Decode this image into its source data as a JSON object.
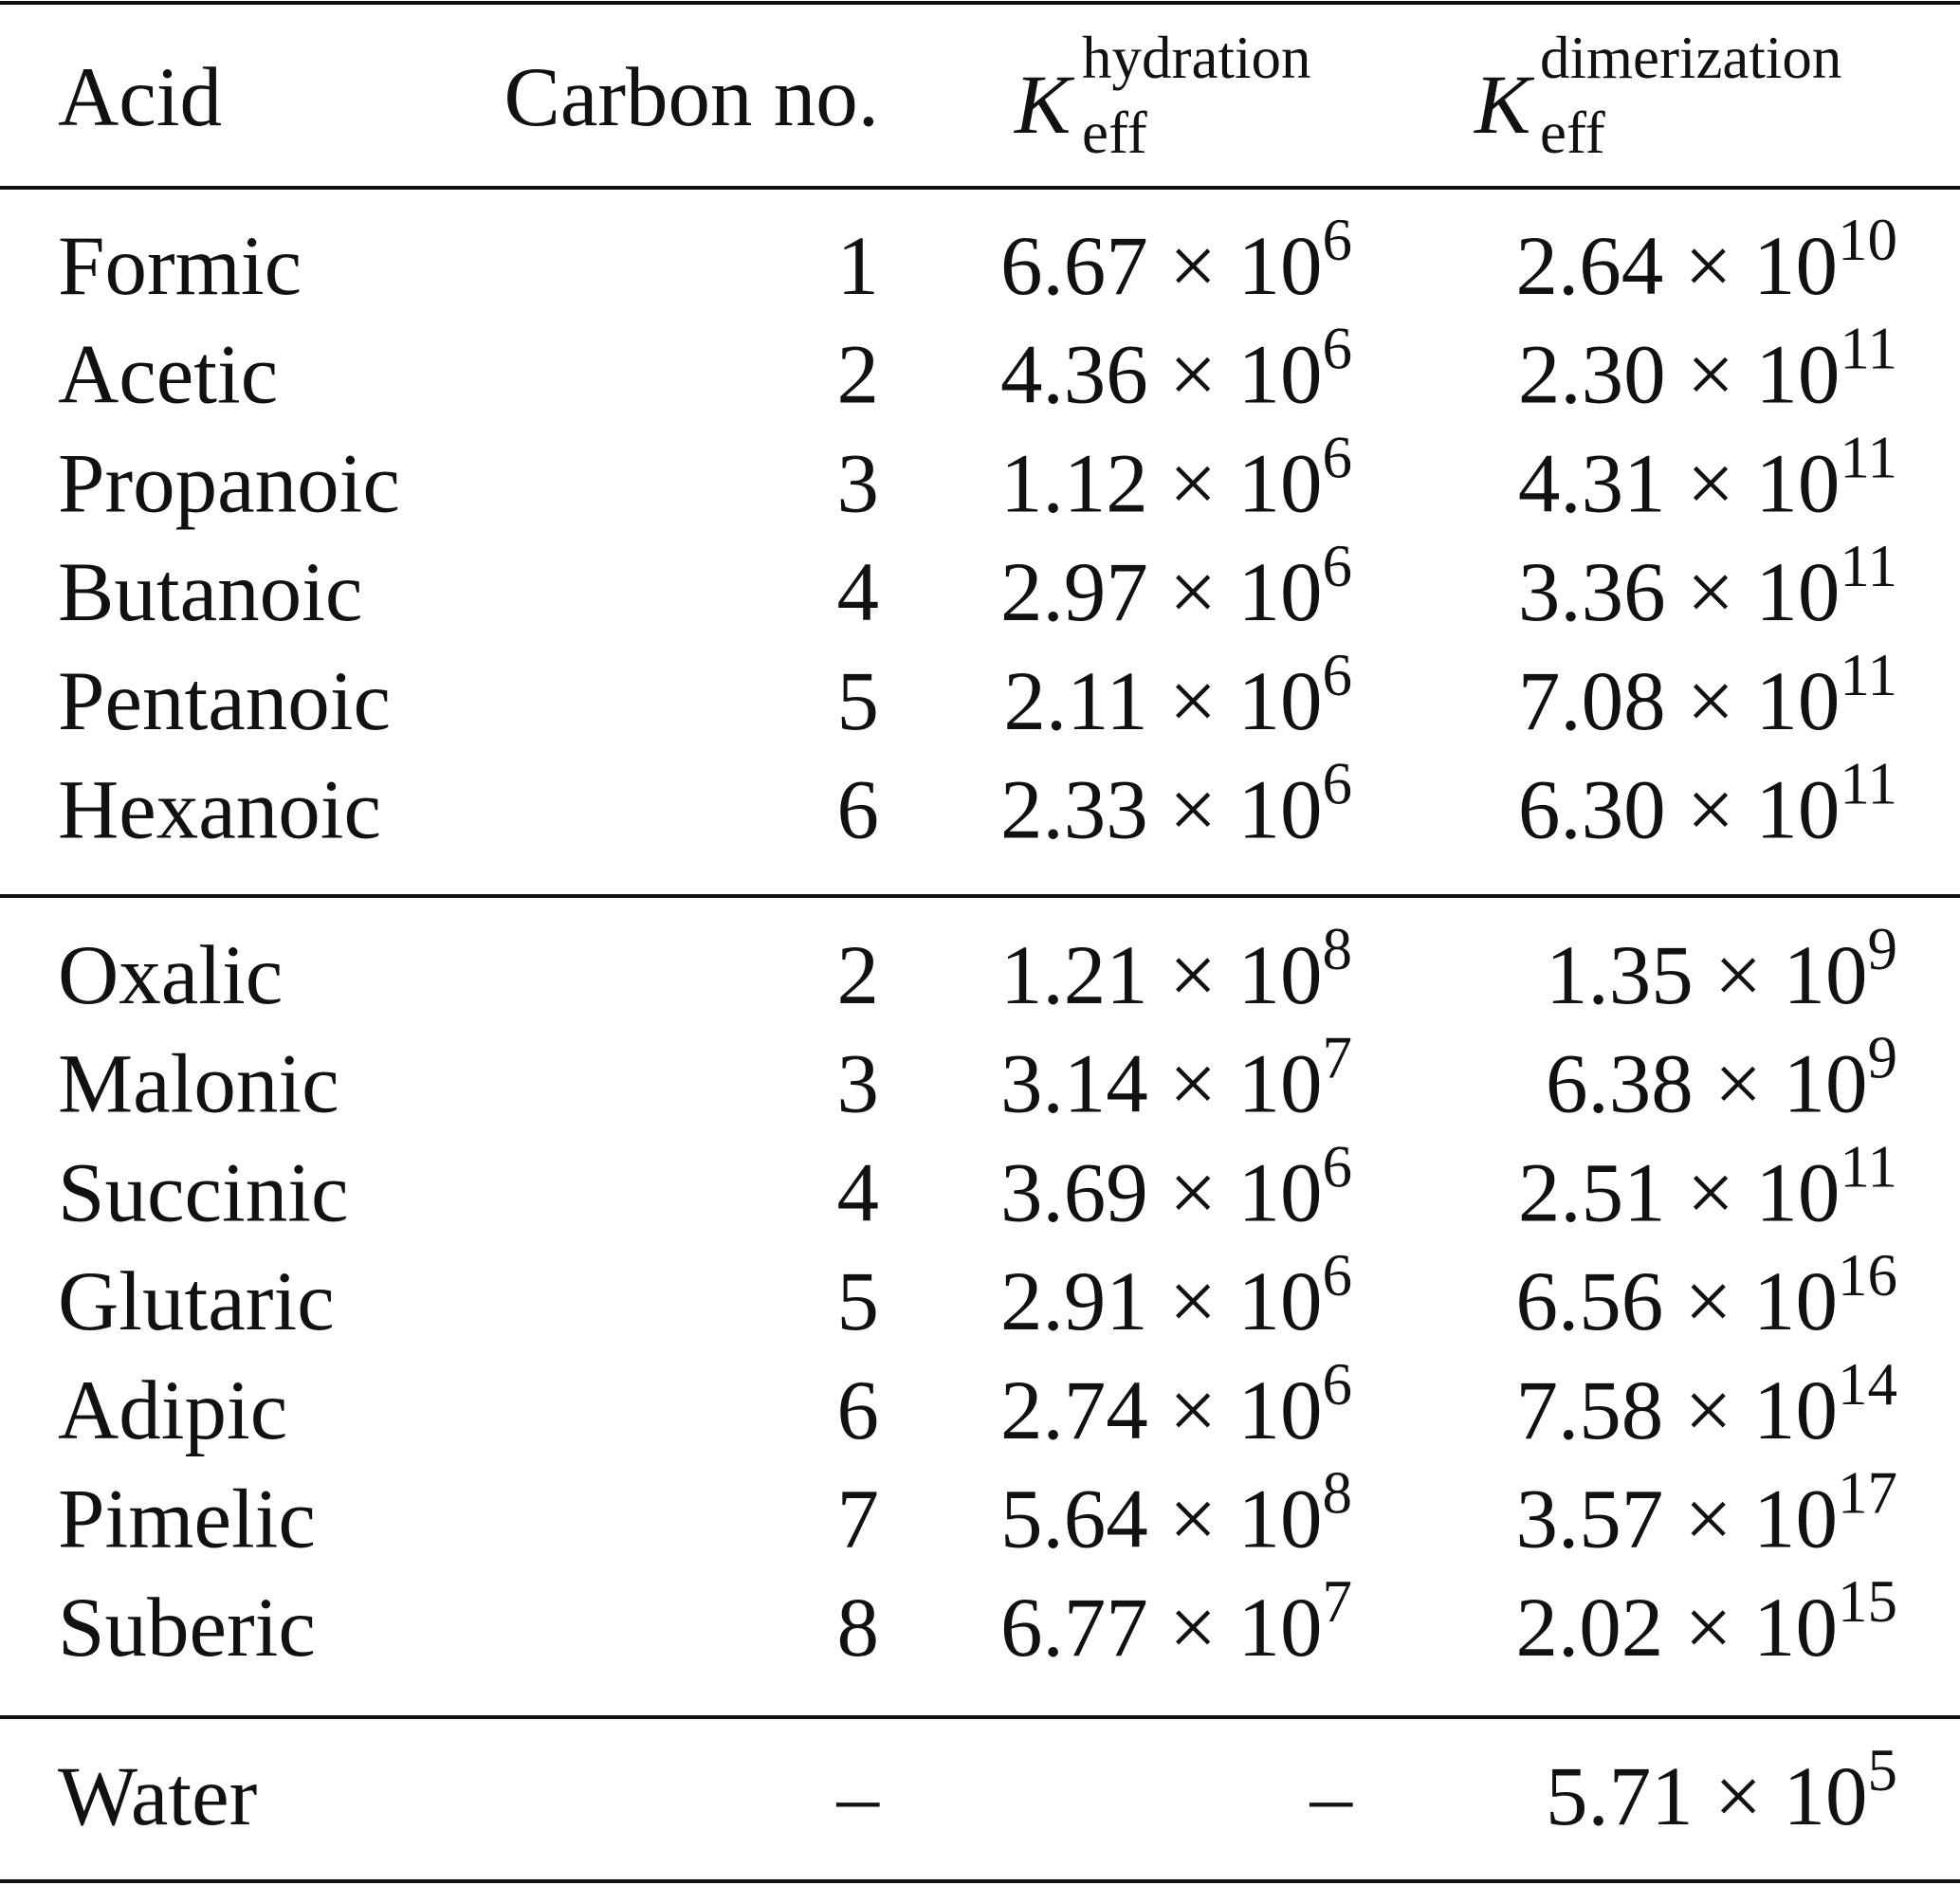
{
  "table": {
    "header": [
      "Acid",
      "Carbon no.",
      {
        "symbol": "K",
        "sub": "eff",
        "sup": "hydration"
      },
      {
        "symbol": "K",
        "sub": "eff",
        "sup": "dimerization"
      }
    ],
    "groups": [
      [
        [
          "Formic",
          "1",
          {
            "base": "6.67 × 10",
            "exp": "6"
          },
          {
            "base": "2.64 × 10",
            "exp": "10"
          }
        ],
        [
          "Acetic",
          "2",
          {
            "base": "4.36 × 10",
            "exp": "6"
          },
          {
            "base": "2.30 × 10",
            "exp": "11"
          }
        ],
        [
          "Propanoic",
          "3",
          {
            "base": "1.12 × 10",
            "exp": "6"
          },
          {
            "base": "4.31 × 10",
            "exp": "11"
          }
        ],
        [
          "Butanoic",
          "4",
          {
            "base": "2.97 × 10",
            "exp": "6"
          },
          {
            "base": "3.36 × 10",
            "exp": "11"
          }
        ],
        [
          "Pentanoic",
          "5",
          {
            "base": "2.11 × 10",
            "exp": "6"
          },
          {
            "base": "7.08 × 10",
            "exp": "11"
          }
        ],
        [
          "Hexanoic",
          "6",
          {
            "base": "2.33 × 10",
            "exp": "6"
          },
          {
            "base": "6.30 × 10",
            "exp": "11"
          }
        ]
      ],
      [
        [
          "Oxalic",
          "2",
          {
            "base": "1.21 × 10",
            "exp": "8"
          },
          {
            "base": "1.35 × 10",
            "exp": "9"
          }
        ],
        [
          "Malonic",
          "3",
          {
            "base": "3.14 × 10",
            "exp": "7"
          },
          {
            "base": "6.38 × 10",
            "exp": "9"
          }
        ],
        [
          "Succinic",
          "4",
          {
            "base": "3.69 × 10",
            "exp": "6"
          },
          {
            "base": "2.51 × 10",
            "exp": "11"
          }
        ],
        [
          "Glutaric",
          "5",
          {
            "base": "2.91 × 10",
            "exp": "6"
          },
          {
            "base": "6.56 × 10",
            "exp": "16"
          }
        ],
        [
          "Adipic",
          "6",
          {
            "base": "2.74 × 10",
            "exp": "6"
          },
          {
            "base": "7.58 × 10",
            "exp": "14"
          }
        ],
        [
          "Pimelic",
          "7",
          {
            "base": "5.64 × 10",
            "exp": "8"
          },
          {
            "base": "3.57 × 10",
            "exp": "17"
          }
        ],
        [
          "Suberic",
          "8",
          {
            "base": "6.77 × 10",
            "exp": "7"
          },
          {
            "base": "2.02 × 10",
            "exp": "15"
          }
        ]
      ],
      [
        [
          "Water",
          "–",
          "–",
          {
            "base": "5.71 × 10",
            "exp": "5"
          }
        ]
      ]
    ]
  }
}
